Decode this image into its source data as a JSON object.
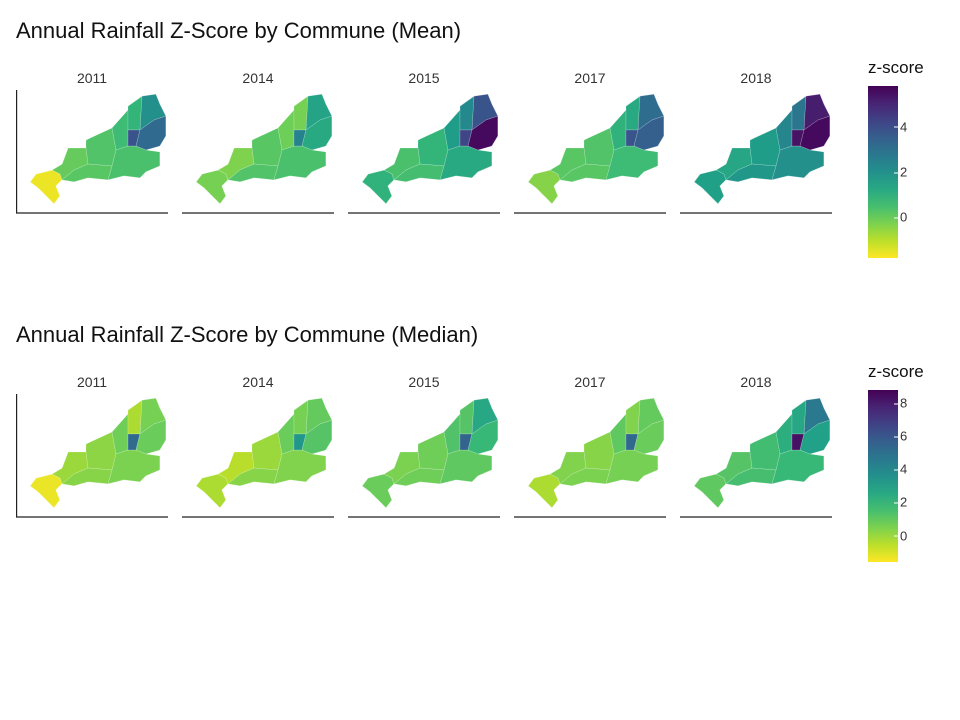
{
  "panels": [
    {
      "id": "mean",
      "title": "Annual Rainfall Z-Score by Commune (Mean)",
      "legend": {
        "title": "z-score",
        "min": -1.8,
        "max": 5.8,
        "ticks": [
          4,
          2,
          0
        ]
      },
      "facets": [
        {
          "year": "2011",
          "regions": {
            "sw": -1.6,
            "w": 0.0,
            "c": 0.3,
            "ce": 0.6,
            "s": 0.2,
            "se": 0.4,
            "n": 0.8,
            "ne_cap": 2.0,
            "e_strip": 3.8,
            "e_tip": 3.2
          }
        },
        {
          "year": "2014",
          "regions": {
            "sw": -0.2,
            "w": -0.3,
            "c": 0.2,
            "ce": -0.1,
            "s": 0.3,
            "se": 0.4,
            "n": -0.2,
            "ne_cap": 1.4,
            "e_strip": 2.4,
            "e_tip": 1.2
          }
        },
        {
          "year": "2015",
          "regions": {
            "sw": 0.9,
            "w": 0.4,
            "c": 0.8,
            "ce": 1.6,
            "s": 0.5,
            "se": 1.2,
            "n": 2.2,
            "ne_cap": 3.8,
            "e_strip": 4.2,
            "e_tip": 5.6
          }
        },
        {
          "year": "2017",
          "regions": {
            "sw": -0.4,
            "w": 0.2,
            "c": 0.3,
            "ce": 0.9,
            "s": 0.2,
            "se": 0.6,
            "n": 1.2,
            "ne_cap": 3.1,
            "e_strip": 3.8,
            "e_tip": 3.5
          }
        },
        {
          "year": "2018",
          "regions": {
            "sw": 1.5,
            "w": 1.3,
            "c": 1.6,
            "ce": 2.3,
            "s": 1.8,
            "se": 2.0,
            "n": 2.8,
            "ne_cap": 5.2,
            "e_strip": 5.4,
            "e_tip": 5.6
          }
        }
      ]
    },
    {
      "id": "median",
      "title": "Annual Rainfall Z-Score by Commune (Median)",
      "legend": {
        "title": "z-score",
        "min": -1.6,
        "max": 8.8,
        "ticks": [
          8,
          6,
          4,
          2,
          0
        ]
      },
      "facets": [
        {
          "year": "2011",
          "regions": {
            "sw": -1.3,
            "w": 0.0,
            "c": 0.2,
            "ce": 0.7,
            "s": 0.3,
            "se": 0.5,
            "n": -0.3,
            "ne_cap": 0.6,
            "e_strip": 5.2,
            "e_tip": 0.8
          }
        },
        {
          "year": "2014",
          "regions": {
            "sw": -0.3,
            "w": -0.5,
            "c": 0.0,
            "ce": 0.8,
            "s": 0.3,
            "se": 0.4,
            "n": 0.6,
            "ne_cap": 0.9,
            "e_strip": 3.3,
            "e_tip": 1.2
          }
        },
        {
          "year": "2015",
          "regions": {
            "sw": 0.8,
            "w": 0.5,
            "c": 0.7,
            "ce": 1.3,
            "s": 0.7,
            "se": 1.0,
            "n": 1.2,
            "ne_cap": 2.6,
            "e_strip": 5.5,
            "e_tip": 1.8
          }
        },
        {
          "year": "2017",
          "regions": {
            "sw": -0.3,
            "w": 0.4,
            "c": 0.3,
            "ce": 1.0,
            "s": 0.5,
            "se": 0.6,
            "n": 0.4,
            "ne_cap": 0.9,
            "e_strip": 5.3,
            "e_tip": 0.8
          }
        },
        {
          "year": "2018",
          "regions": {
            "sw": 1.0,
            "w": 1.2,
            "c": 1.6,
            "ce": 2.3,
            "s": 1.5,
            "se": 1.8,
            "n": 2.6,
            "ne_cap": 4.6,
            "e_strip": 8.3,
            "e_tip": 2.9
          }
        }
      ]
    }
  ]
}
